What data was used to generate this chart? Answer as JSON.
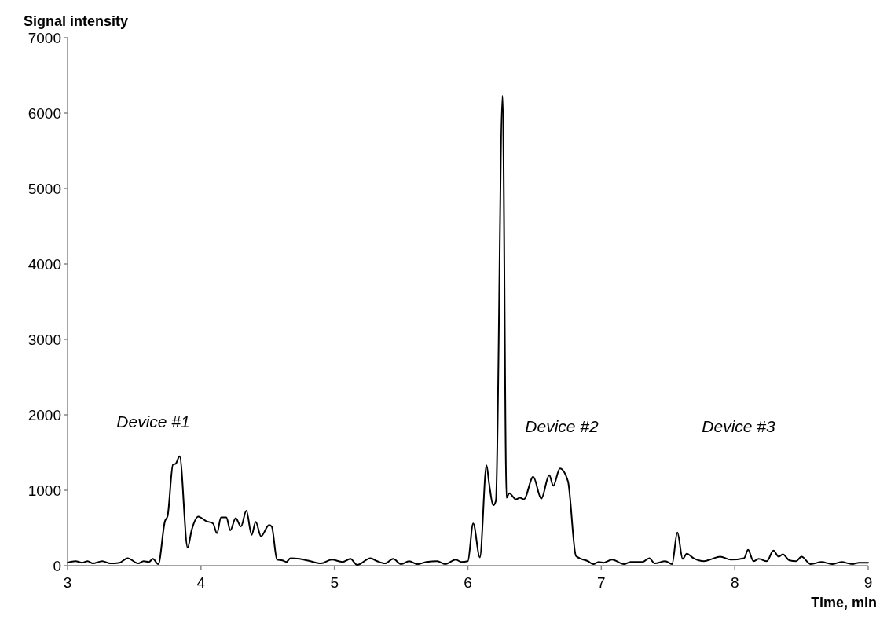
{
  "chart_data": {
    "type": "line",
    "xlabel": "Time, min",
    "ylabel": "Signal intensity",
    "xlim": [
      3,
      9
    ],
    "xticks": [
      3,
      4,
      5,
      6,
      7,
      8,
      9
    ],
    "ylim": [
      0,
      7000
    ],
    "yticks": [
      0,
      1000,
      2000,
      3000,
      4000,
      5000,
      6000,
      7000
    ],
    "grid": false,
    "marker": "none",
    "line_style": "solid",
    "annotations": [
      "Device #1",
      "Device #2",
      "Device #3"
    ],
    "series": [
      {
        "color": "#000000",
        "x": [
          3.0,
          3.06,
          3.11,
          3.15,
          3.19,
          3.26,
          3.32,
          3.39,
          3.45,
          3.53,
          3.57,
          3.61,
          3.64,
          3.68,
          3.73,
          3.75,
          3.79,
          3.81,
          3.84,
          3.9,
          3.93,
          3.98,
          4.04,
          4.09,
          4.12,
          4.15,
          4.19,
          4.22,
          4.26,
          4.3,
          4.34,
          4.38,
          4.41,
          4.45,
          4.51,
          4.53,
          4.57,
          4.61,
          4.64,
          4.67,
          4.74,
          4.82,
          4.9,
          4.98,
          5.06,
          5.12,
          5.17,
          5.27,
          5.32,
          5.38,
          5.44,
          5.5,
          5.56,
          5.62,
          5.69,
          5.77,
          5.83,
          5.91,
          5.95,
          6.0,
          6.04,
          6.09,
          6.14,
          6.16,
          6.19,
          6.21,
          6.26,
          6.29,
          6.31,
          6.36,
          6.39,
          6.42,
          6.49,
          6.55,
          6.61,
          6.64,
          6.69,
          6.75,
          6.81,
          6.85,
          6.9,
          6.94,
          6.98,
          7.02,
          7.08,
          7.17,
          7.22,
          7.31,
          7.36,
          7.4,
          7.48,
          7.53,
          7.57,
          7.61,
          7.64,
          7.69,
          7.77,
          7.83,
          7.89,
          7.97,
          8.07,
          8.1,
          8.14,
          8.18,
          8.24,
          8.29,
          8.33,
          8.36,
          8.41,
          8.46,
          8.5,
          8.57,
          8.65,
          8.73,
          8.8,
          8.88,
          8.93,
          9.0
        ],
        "values": [
          40,
          60,
          40,
          60,
          30,
          60,
          30,
          40,
          100,
          30,
          60,
          50,
          90,
          20,
          590,
          660,
          1340,
          1350,
          1450,
          240,
          470,
          650,
          590,
          560,
          430,
          640,
          640,
          470,
          630,
          520,
          730,
          410,
          580,
          390,
          540,
          520,
          80,
          70,
          50,
          100,
          90,
          60,
          30,
          80,
          50,
          90,
          10,
          100,
          60,
          30,
          90,
          20,
          60,
          20,
          50,
          60,
          20,
          80,
          50,
          60,
          560,
          110,
          1330,
          1080,
          800,
          860,
          6230,
          900,
          960,
          880,
          900,
          880,
          1180,
          890,
          1200,
          1060,
          1290,
          1120,
          130,
          90,
          60,
          20,
          50,
          40,
          80,
          20,
          50,
          50,
          100,
          30,
          60,
          20,
          440,
          90,
          160,
          100,
          60,
          90,
          120,
          80,
          100,
          210,
          60,
          90,
          60,
          200,
          120,
          150,
          70,
          60,
          120,
          20,
          50,
          20,
          50,
          20,
          40,
          40
        ]
      }
    ]
  }
}
